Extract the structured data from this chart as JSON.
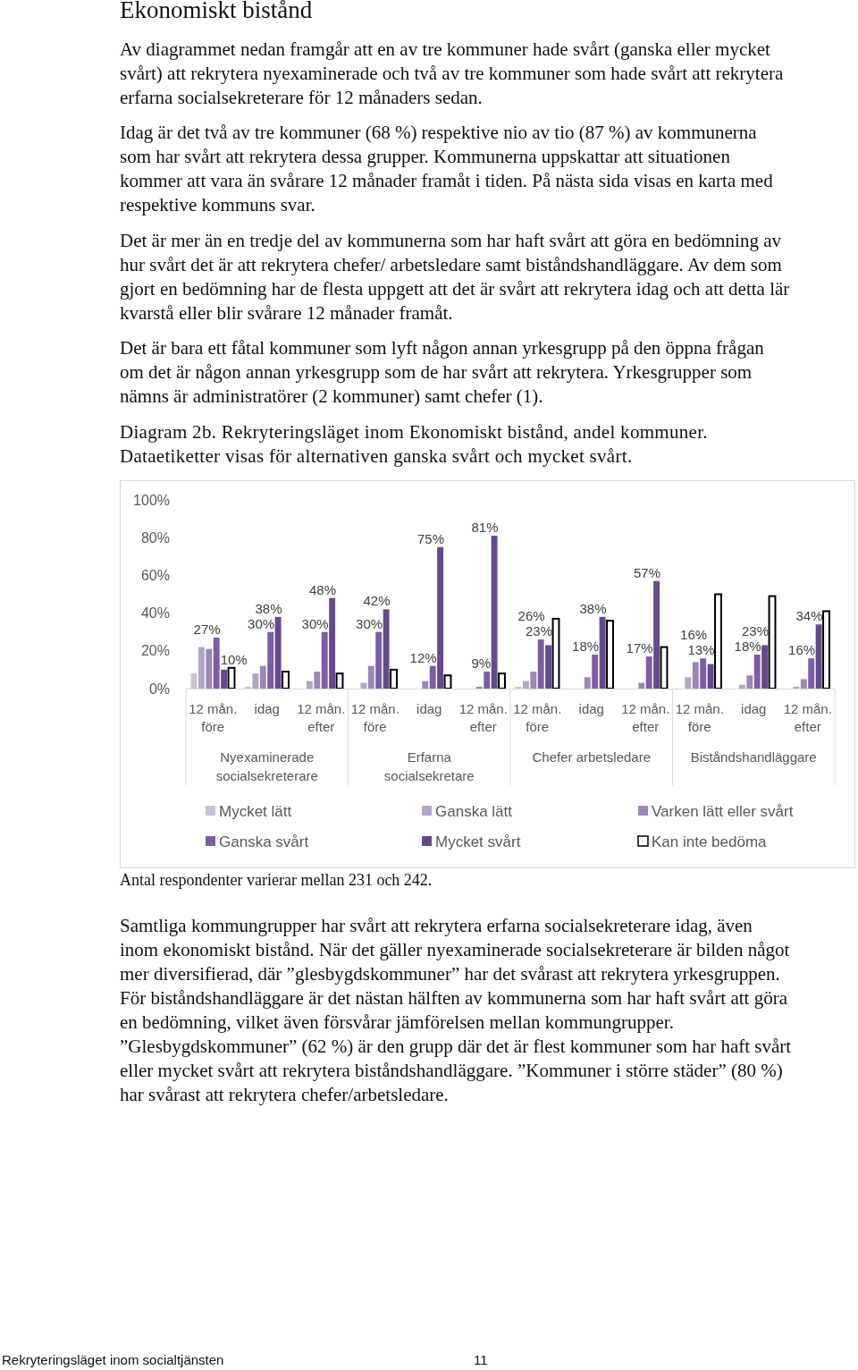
{
  "chart_data": {
    "type": "bar",
    "title": "Diagram 2b. Rekryteringsläget inom Ekonomiskt bistånd, andel kommuner.",
    "subtitle": "Dataetiketter visas för alternativen ganska svårt och mycket svårt.",
    "categories": [
      "12 mån. före",
      "idag",
      "12 mån. efter",
      "12 mån. före",
      "idag",
      "12 mån. efter",
      "12 mån. före",
      "idag",
      "12 mån. efter",
      "12 mån. före",
      "idag",
      "12 mån. efter"
    ],
    "series": [
      {
        "name": "Mycket lätt",
        "color": "#c9c3d6",
        "values": [
          8,
          1,
          0,
          0,
          0,
          0,
          1,
          0,
          0,
          0,
          0,
          0
        ]
      },
      {
        "name": "Ganska lätt",
        "color": "#b1a6c6",
        "values": [
          22,
          8,
          4,
          3,
          0,
          0,
          4,
          0,
          0,
          6,
          2,
          1
        ]
      },
      {
        "name": "Varken lätt eller svårt",
        "color": "#9a88b6",
        "values": [
          21,
          12,
          9,
          12,
          4,
          1,
          9,
          6,
          3,
          14,
          7,
          5
        ]
      },
      {
        "name": "Ganska svårt",
        "color": "#7b5ea3",
        "values": [
          27,
          30,
          30,
          30,
          12,
          9,
          26,
          18,
          17,
          16,
          18,
          16
        ],
        "value_labels": [
          "27%",
          "30%",
          "30%",
          "30%",
          "12%",
          "9%",
          "26%",
          "18%",
          "17%",
          "16%",
          "18%",
          "16%"
        ]
      },
      {
        "name": "Mycket svårt",
        "color": "#644a8c",
        "values": [
          10,
          38,
          48,
          42,
          75,
          81,
          23,
          38,
          57,
          13,
          23,
          34
        ],
        "value_labels": [
          "10%",
          "38%",
          "48%",
          "42%",
          "75%",
          "81%",
          "23%",
          "38%",
          "57%",
          "13%",
          "23%",
          "34%"
        ]
      },
      {
        "name": "Kan inte bedöma",
        "color": "#ffffff",
        "values": [
          11,
          9,
          8,
          10,
          7,
          8,
          37,
          36,
          22,
          50,
          49,
          41
        ]
      }
    ],
    "ylim": [
      0,
      100
    ],
    "yticks": [
      {
        "value": 0,
        "label": "0%"
      },
      {
        "value": 20,
        "label": "20%"
      },
      {
        "value": 40,
        "label": "40%"
      },
      {
        "value": 60,
        "label": "60%"
      },
      {
        "value": 80,
        "label": "80%"
      },
      {
        "value": 100,
        "label": "100%"
      }
    ],
    "legend": "bottom",
    "annotations": [
      "Ekonomiskt bistånd",
      "Av diagrammet nedan framgår att en av tre kommuner hade svårt (ganska eller mycket svårt) att rekrytera nyexaminerade och två av tre kommuner som hade svårt att rekrytera erfarna socialsekreterare för 12 månaders sedan.",
      "Idag är det två av tre kommuner (68 %) respektive nio av tio (87 %) av kommunerna som har svårt att rekrytera dessa grupper. Kommunerna uppskattar att situationen kommer att vara än svårare 12 månader framåt i tiden. På nästa sida visas en karta med respektive kommuns svar.",
      "Det är mer än en tredje del av kommunerna som har haft svårt att göra en bedömning av hur svårt det är att rekrytera chefer/ arbetsledare samt biståndshandläggare. Av dem som gjort en bedömning har de flesta uppgett att det är svårt att rekrytera idag och att detta lär kvarstå eller blir svårare 12 månader framåt.",
      "Det är bara ett fåtal kommuner som lyft någon annan yrkesgrupp på den öppna frågan om det är någon annan yrkesgrupp som de har svårt att rekrytera. Yrkesgrupper som nämns är administratörer (2 kommuner) samt chefer (1).",
      "Nyexaminerade socialsekreterare",
      "Erfarna socialsekretare",
      "Chefer arbetsledare",
      "Biståndshandläggare",
      "Antal respondenter varierar mellan 231 och 242.",
      "Samtliga kommungrupper har svårt att rekrytera erfarna socialsekreterare idag, även inom ekonomiskt bistånd. När det gäller nyexaminerade socialsekreterare är bilden något mer diversifierad, där ”glesbygdskommuner” har det svårast att rekrytera yrkesgruppen. För biståndshandläggare är det nästan hälften av kommunerna som har haft svårt att göra en bedömning, vilket även försvårar jämförelsen mellan kommungrupper. ”Glesbygdskommuner” (62 %) är den grupp där det är flest kommuner som har haft svårt eller mycket svårt att rekrytera biståndshandläggare. ”Kommuner i större städer” (80 %) har svårast att rekrytera chefer/arbetsledare.",
      "Rekryteringsläget inom socialtjänsten",
      "11"
    ]
  }
}
